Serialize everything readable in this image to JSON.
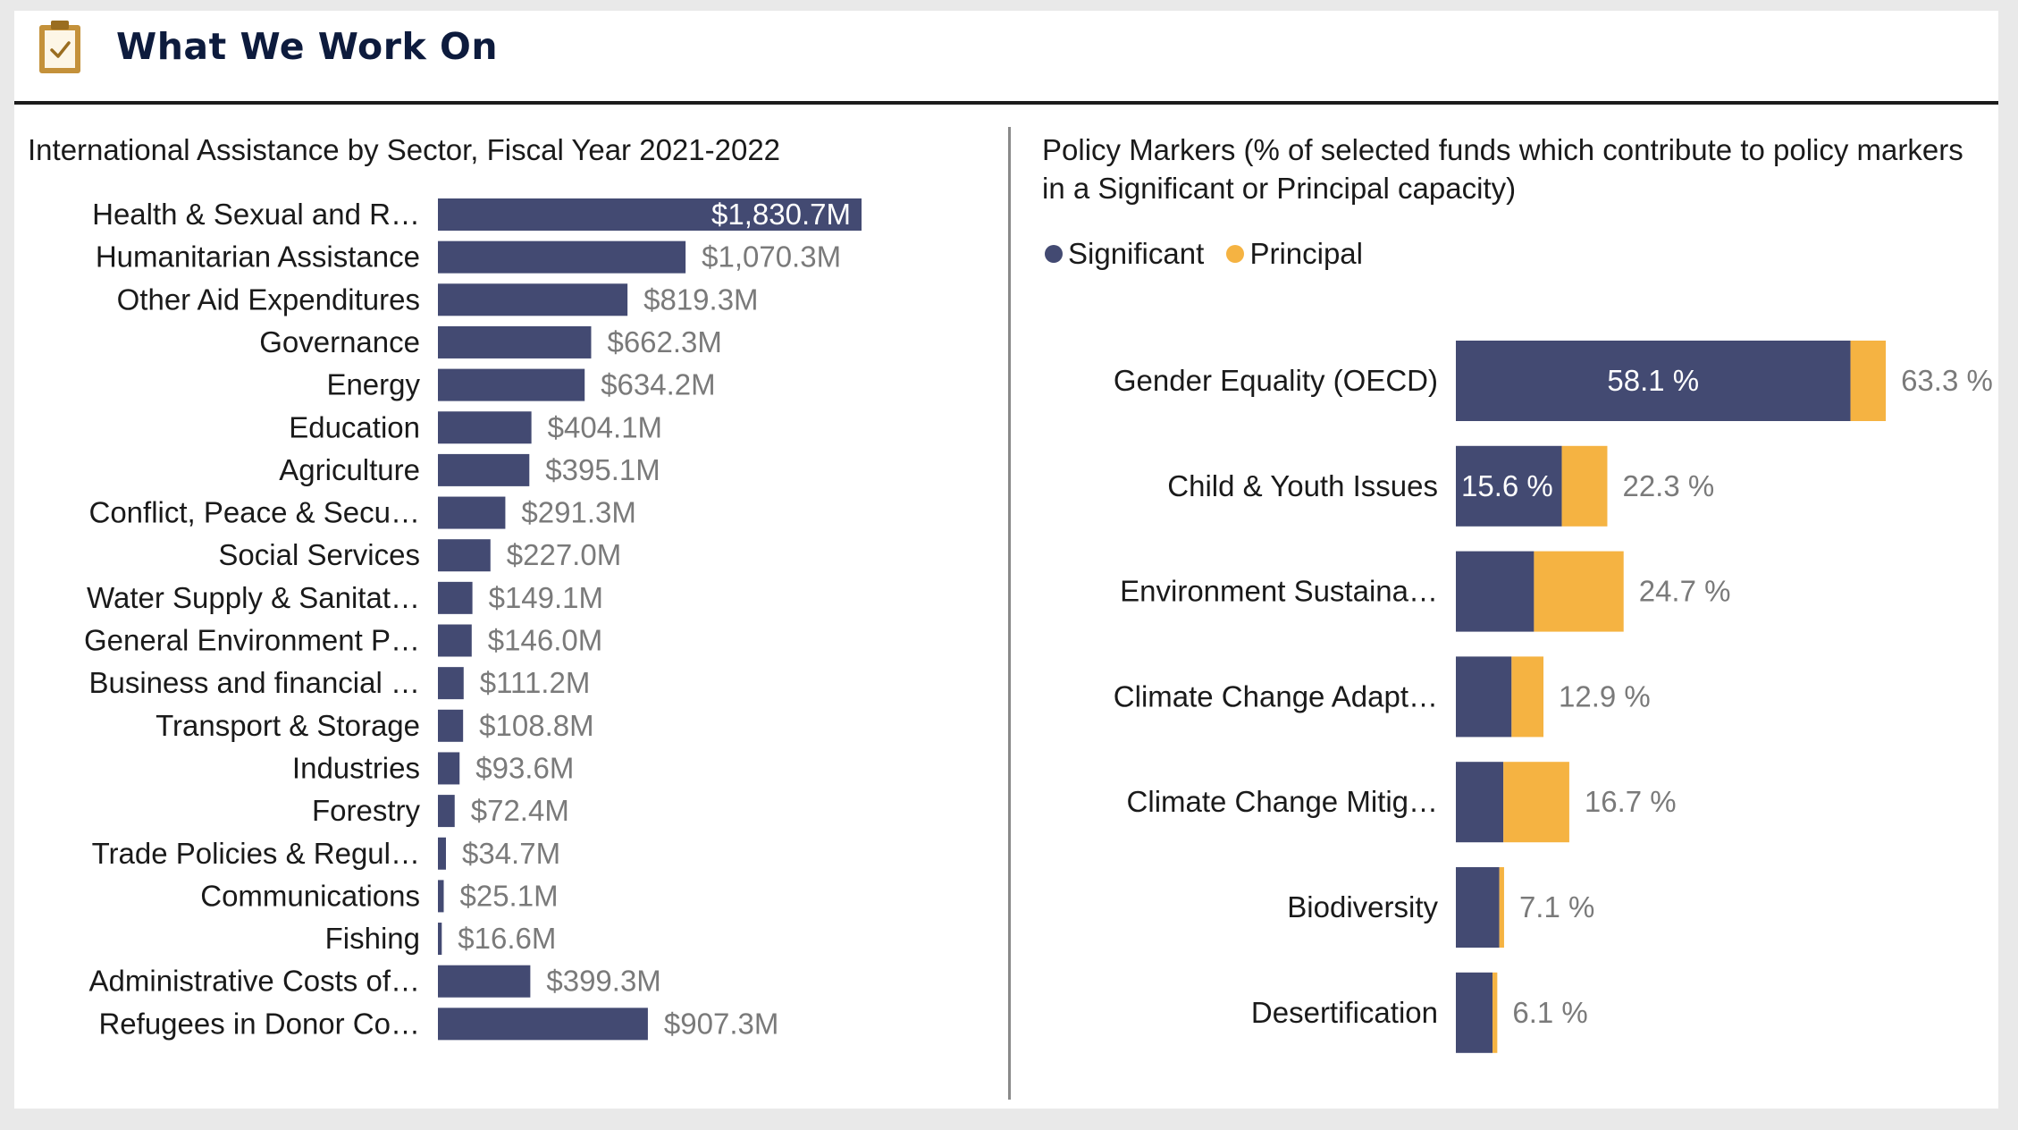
{
  "header": {
    "title": "What We Work On",
    "icon": "clipboard-check-icon",
    "icon_color": "#b8862b",
    "title_color": "#0d1b3d"
  },
  "chart_data": [
    {
      "type": "bar",
      "orientation": "horizontal",
      "title": "International Assistance by Sector, Fiscal Year 2021-2022",
      "unit": "$M",
      "bar_color": "#434a72",
      "categories": [
        "Health & Sexual and R…",
        "Humanitarian Assistance",
        "Other Aid Expenditures",
        "Governance",
        "Energy",
        "Education",
        "Agriculture",
        "Conflict, Peace & Secu…",
        "Social Services",
        "Water Supply & Sanitat…",
        "General Environment P…",
        "Business and financial …",
        "Transport & Storage",
        "Industries",
        "Forestry",
        "Trade Policies & Regul…",
        "Communications",
        "Fishing",
        "Administrative Costs of…",
        "Refugees in Donor Co…"
      ],
      "values": [
        1830.7,
        1070.3,
        819.3,
        662.3,
        634.2,
        404.1,
        395.1,
        291.3,
        227.0,
        149.1,
        146.0,
        111.2,
        108.8,
        93.6,
        72.4,
        34.7,
        25.1,
        16.6,
        399.3,
        907.3
      ],
      "labels": [
        "$1,830.7M",
        "$1,070.3M",
        "$819.3M",
        "$662.3M",
        "$634.2M",
        "$404.1M",
        "$395.1M",
        "$291.3M",
        "$227.0M",
        "$149.1M",
        "$146.0M",
        "$111.2M",
        "$108.8M",
        "$93.6M",
        "$72.4M",
        "$34.7M",
        "$25.1M",
        "$16.6M",
        "$399.3M",
        "$907.3M"
      ]
    },
    {
      "type": "bar",
      "orientation": "horizontal",
      "stacked": true,
      "title": "Policy Markers (% of selected funds which contribute to policy markers in a Significant or Principal capacity)",
      "legend_position": "top-left",
      "categories": [
        "Gender Equality (OECD)",
        "Child & Youth Issues",
        "Environment Sustaina…",
        "Climate Change Adapt…",
        "Climate Change Mitig…",
        "Biodiversity",
        "Desertification"
      ],
      "series": [
        {
          "name": "Significant",
          "color": "#434a72",
          "values": [
            58.1,
            15.6,
            11.5,
            8.2,
            7.0,
            6.4,
            5.4
          ]
        },
        {
          "name": "Principal",
          "color": "#f5b342",
          "values": [
            5.2,
            6.7,
            13.2,
            4.7,
            9.7,
            0.7,
            0.7
          ]
        }
      ],
      "total_labels": [
        "63.3 %",
        "22.3 %",
        "24.7 %",
        "12.9 %",
        "16.7 %",
        "7.1 %",
        "6.1 %"
      ],
      "segment_labels": [
        "58.1 %",
        "15.6 %",
        "",
        "",
        "",
        "",
        ""
      ]
    }
  ]
}
